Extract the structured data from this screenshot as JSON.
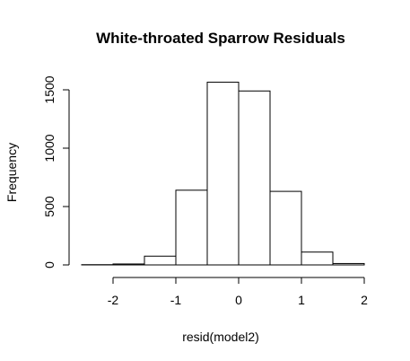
{
  "chart_data": {
    "type": "histogram",
    "title": "White-throated Sparrow Residuals",
    "xlabel": "resid(model2)",
    "ylabel": "Frequency",
    "bins": [
      {
        "start": -2.5,
        "end": -2.0,
        "count": 2
      },
      {
        "start": -2.0,
        "end": -1.5,
        "count": 8
      },
      {
        "start": -1.5,
        "end": -1.0,
        "count": 75
      },
      {
        "start": -1.0,
        "end": -0.5,
        "count": 640
      },
      {
        "start": -0.5,
        "end": 0.0,
        "count": 1565
      },
      {
        "start": 0.0,
        "end": 0.5,
        "count": 1490
      },
      {
        "start": 0.5,
        "end": 1.0,
        "count": 630
      },
      {
        "start": 1.0,
        "end": 1.5,
        "count": 110
      },
      {
        "start": 1.5,
        "end": 2.0,
        "count": 12
      }
    ],
    "xlim": [
      -2.5,
      2.0
    ],
    "ylim": [
      0,
      1565
    ],
    "x_ticks": [
      -2,
      -1,
      0,
      1,
      2
    ],
    "y_ticks": [
      0,
      500,
      1000,
      1500
    ],
    "bar_fill": "#ffffff",
    "bar_stroke": "#000000",
    "grid": false,
    "legend": "none"
  }
}
